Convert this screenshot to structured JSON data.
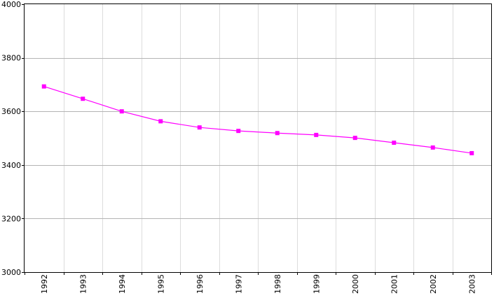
{
  "chart_data": {
    "type": "line",
    "title": "",
    "xlabel": "",
    "ylabel": "",
    "x": [
      "1992",
      "1993",
      "1994",
      "1995",
      "1996",
      "1997",
      "1998",
      "1999",
      "2000",
      "2001",
      "2002",
      "2003"
    ],
    "series": [
      {
        "values": [
          3693,
          3647,
          3600,
          3563,
          3540,
          3527,
          3519,
          3512,
          3501,
          3483,
          3465,
          3444
        ]
      }
    ],
    "ylim": [
      3000,
      4000
    ],
    "yticks": [
      3000,
      3200,
      3400,
      3600,
      3800,
      4000
    ],
    "grid": true,
    "x_tick_rotation": "vertical",
    "marker": "square",
    "colors": {
      "line": "#ff00ff",
      "grid_major": "#b4b4b4",
      "grid_minor": "#dcdcdc",
      "axis": "#000000"
    }
  }
}
